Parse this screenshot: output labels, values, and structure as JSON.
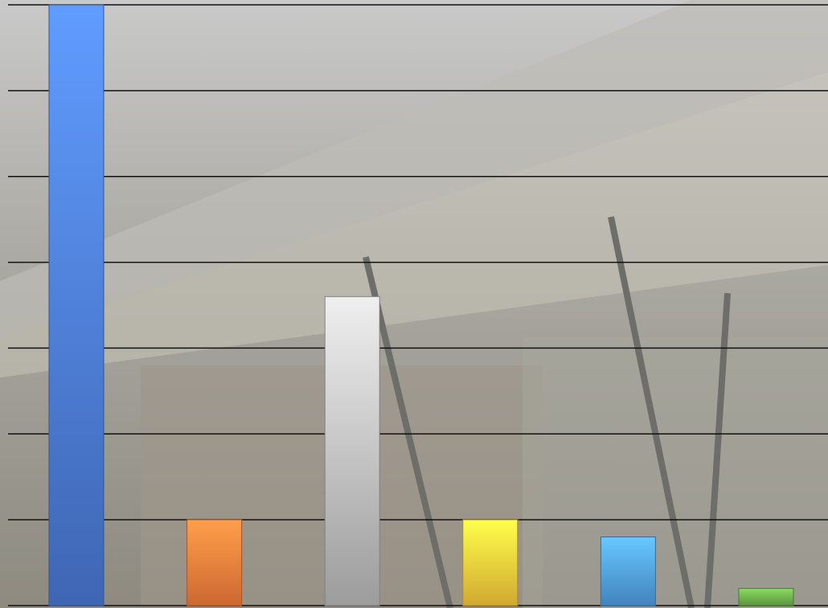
{
  "chart_data": {
    "type": "bar",
    "categories": [
      null,
      null,
      null,
      null,
      null,
      null
    ],
    "values": [
      7,
      1,
      3.6,
      1,
      0.8,
      0.2
    ],
    "colors": [
      "#4a78d4",
      "#f07a3a",
      "#b8b8b8",
      "#f6c63a",
      "#4f9ae0",
      "#6aab4a"
    ],
    "ylim": [
      0,
      7
    ],
    "yticks": [
      0,
      1,
      2,
      3,
      4,
      5,
      6,
      7
    ],
    "grid": true
  }
}
